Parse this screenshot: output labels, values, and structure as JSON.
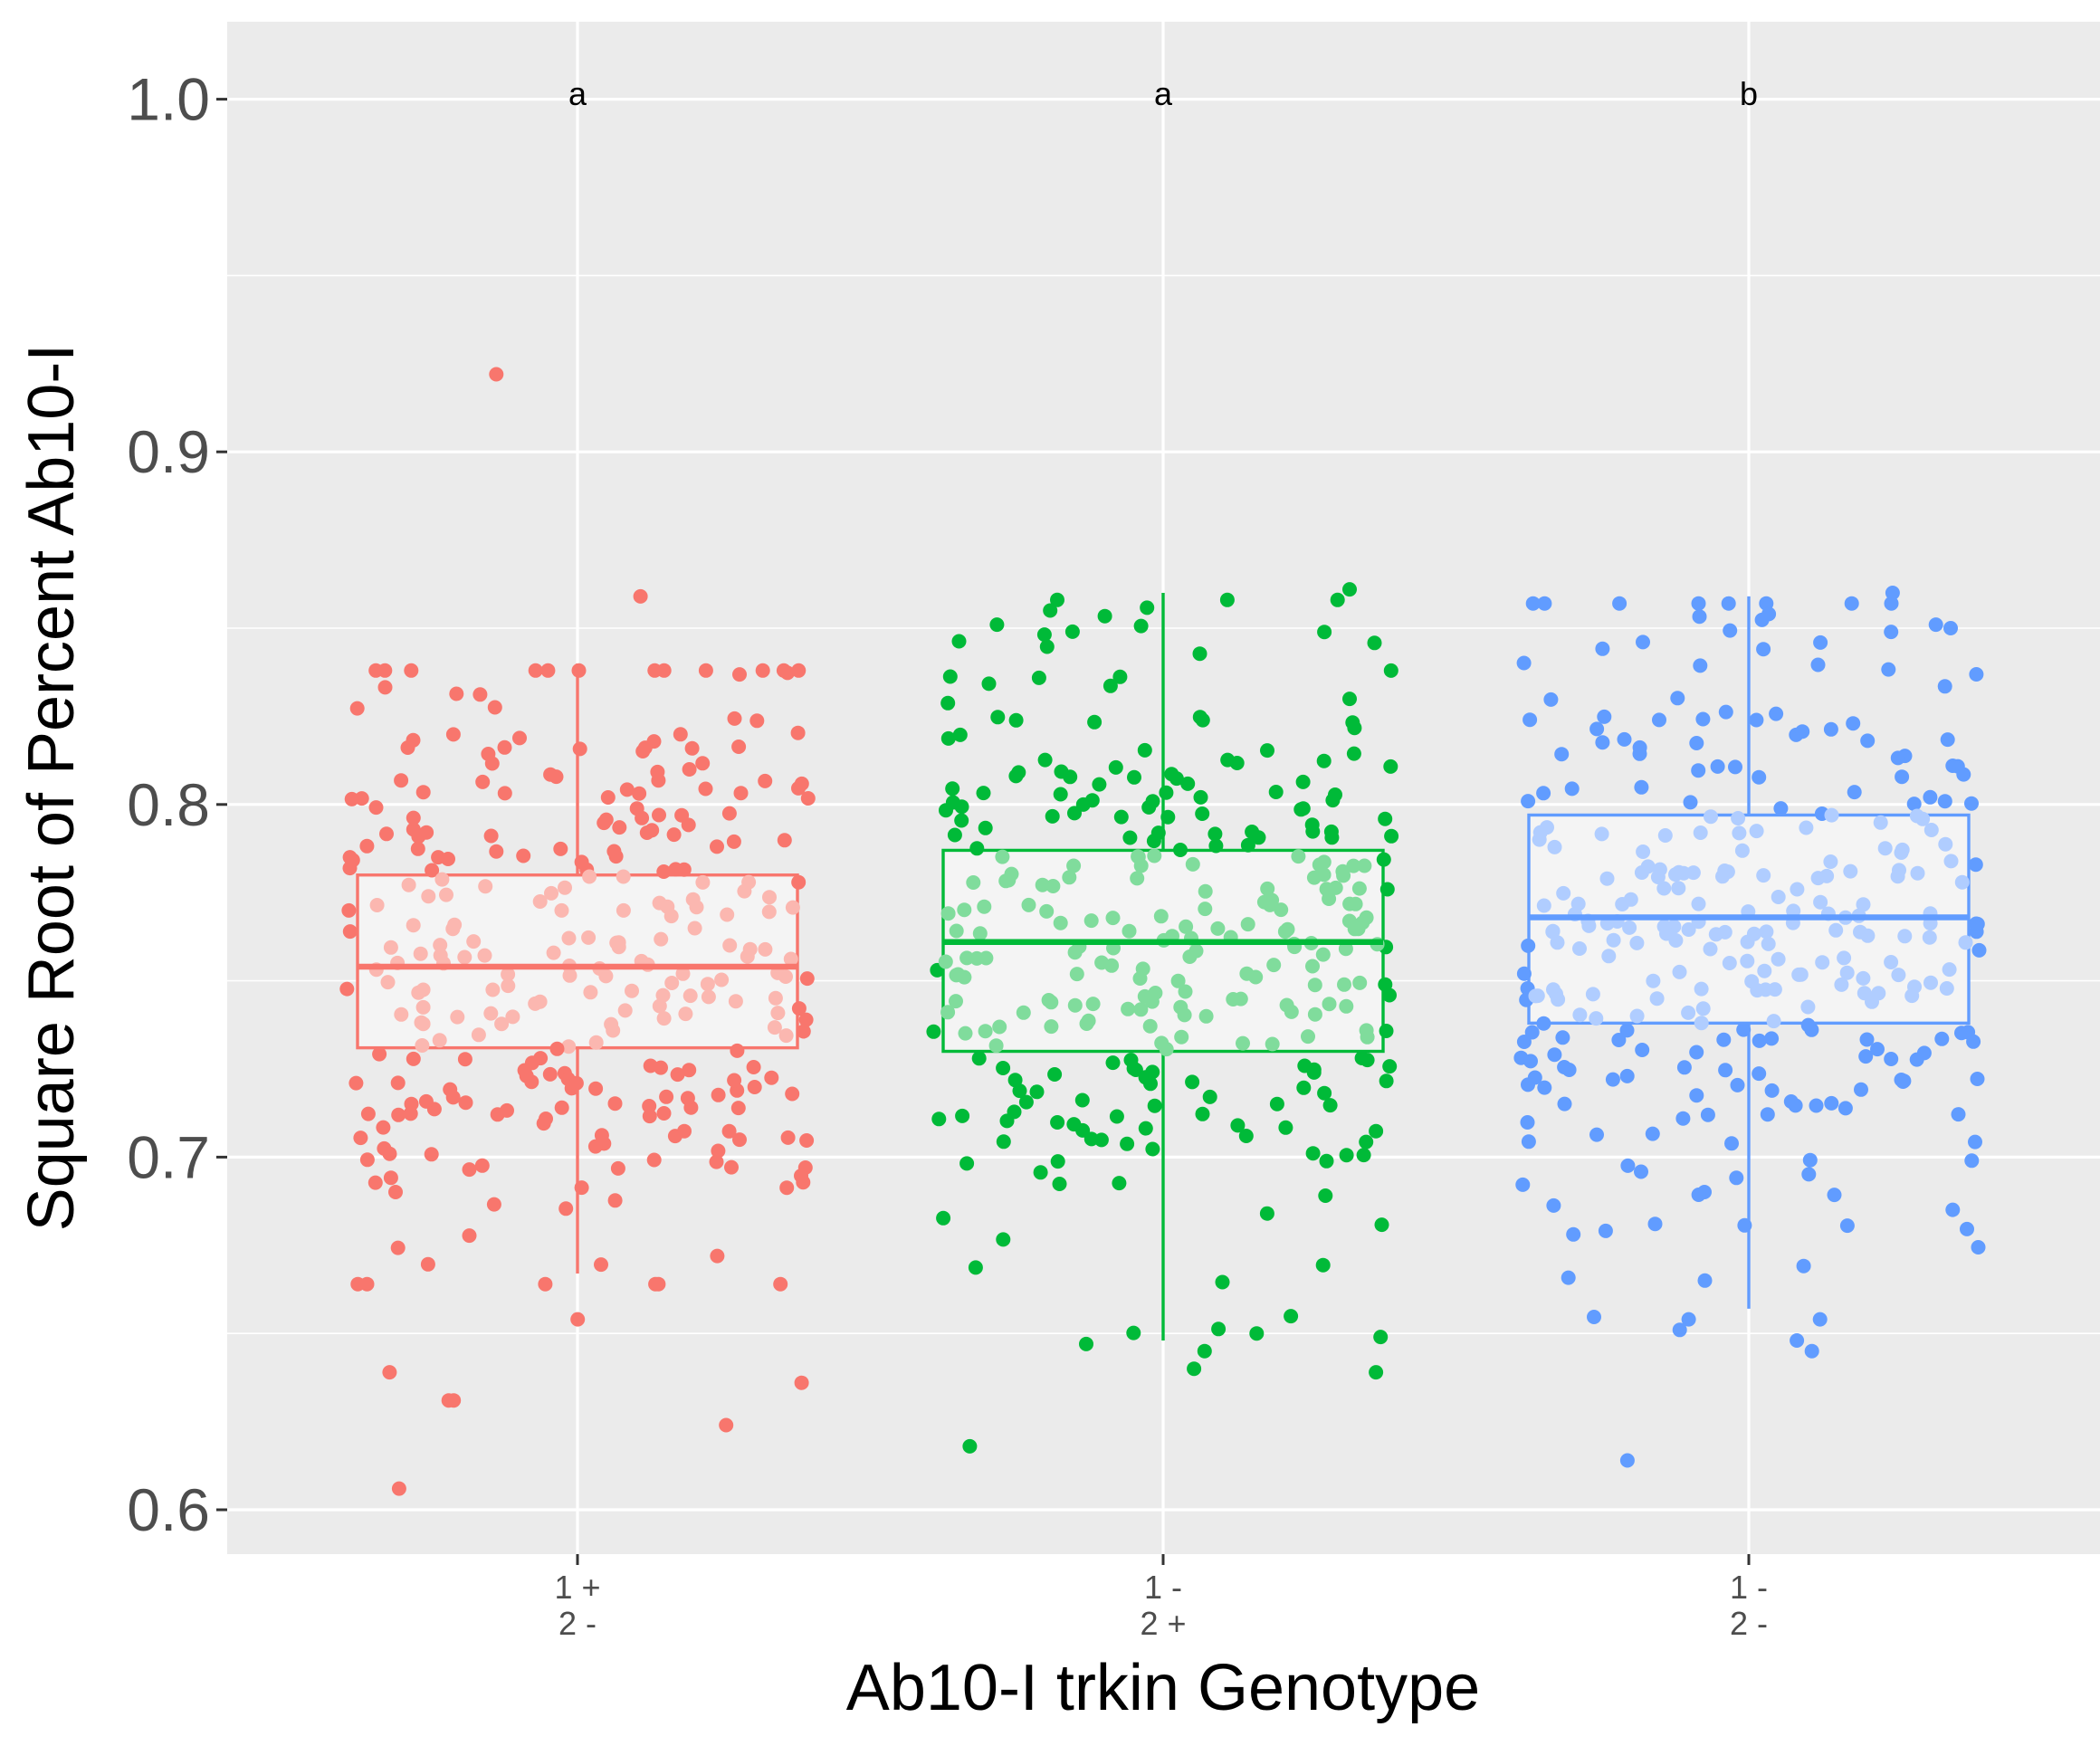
{
  "chart_data": {
    "type": "box+jitter",
    "title": "",
    "xlabel": "Ab10-I trkin Genotype",
    "ylabel": "Square Root of Percent Ab10-I",
    "ylim": [
      0.588,
      1.02
    ],
    "yticks": [
      {
        "value": 0.6,
        "label": "0.6"
      },
      {
        "value": 0.7,
        "label": "0.7"
      },
      {
        "value": 0.8,
        "label": "0.8"
      },
      {
        "value": 0.9,
        "label": "0.9"
      },
      {
        "value": 1.0,
        "label": "1.0"
      }
    ],
    "y_minor_gridlines": [
      0.65,
      0.75,
      0.85,
      0.95
    ],
    "grid": true,
    "legend": "none",
    "categories": [
      {
        "id": "g1",
        "tick_line1": "1 +",
        "tick_line2": "2 -",
        "letter": "a",
        "color": "#f8766d",
        "light_color": "#fbb7b0",
        "box": {
          "lower_whisker": 0.667,
          "q1": 0.731,
          "median": 0.754,
          "q3": 0.78,
          "upper_whisker": 0.84
        },
        "n_points": 300,
        "seed": 11,
        "point_sd": 0.041,
        "outliers": [
          0.922,
          0.859,
          0.631,
          0.624,
          0.631,
          0.636,
          0.639,
          0.606,
          0.654
        ]
      },
      {
        "id": "g2",
        "tick_line1": "1 -",
        "tick_line2": "2 +",
        "letter": "a",
        "color": "#00ba38",
        "light_color": "#80dc9c",
        "box": {
          "lower_whisker": 0.648,
          "q1": 0.73,
          "median": 0.761,
          "q3": 0.787,
          "upper_whisker": 0.86
        },
        "n_points": 300,
        "seed": 23,
        "point_sd": 0.043,
        "outliers": [
          0.618,
          0.64,
          0.639,
          0.645,
          0.65,
          0.647,
          0.649,
          0.861,
          0.855,
          0.851
        ]
      },
      {
        "id": "g3",
        "tick_line1": "1 -",
        "tick_line2": "2 -",
        "letter": "b",
        "color": "#619cff",
        "light_color": "#b0cdff",
        "box": {
          "lower_whisker": 0.657,
          "q1": 0.738,
          "median": 0.768,
          "q3": 0.797,
          "upper_whisker": 0.859
        },
        "n_points": 300,
        "seed": 37,
        "point_sd": 0.045,
        "outliers": [
          0.614,
          0.645,
          0.648,
          0.651,
          0.665,
          0.86,
          0.854,
          0.851,
          0.85
        ]
      }
    ]
  }
}
